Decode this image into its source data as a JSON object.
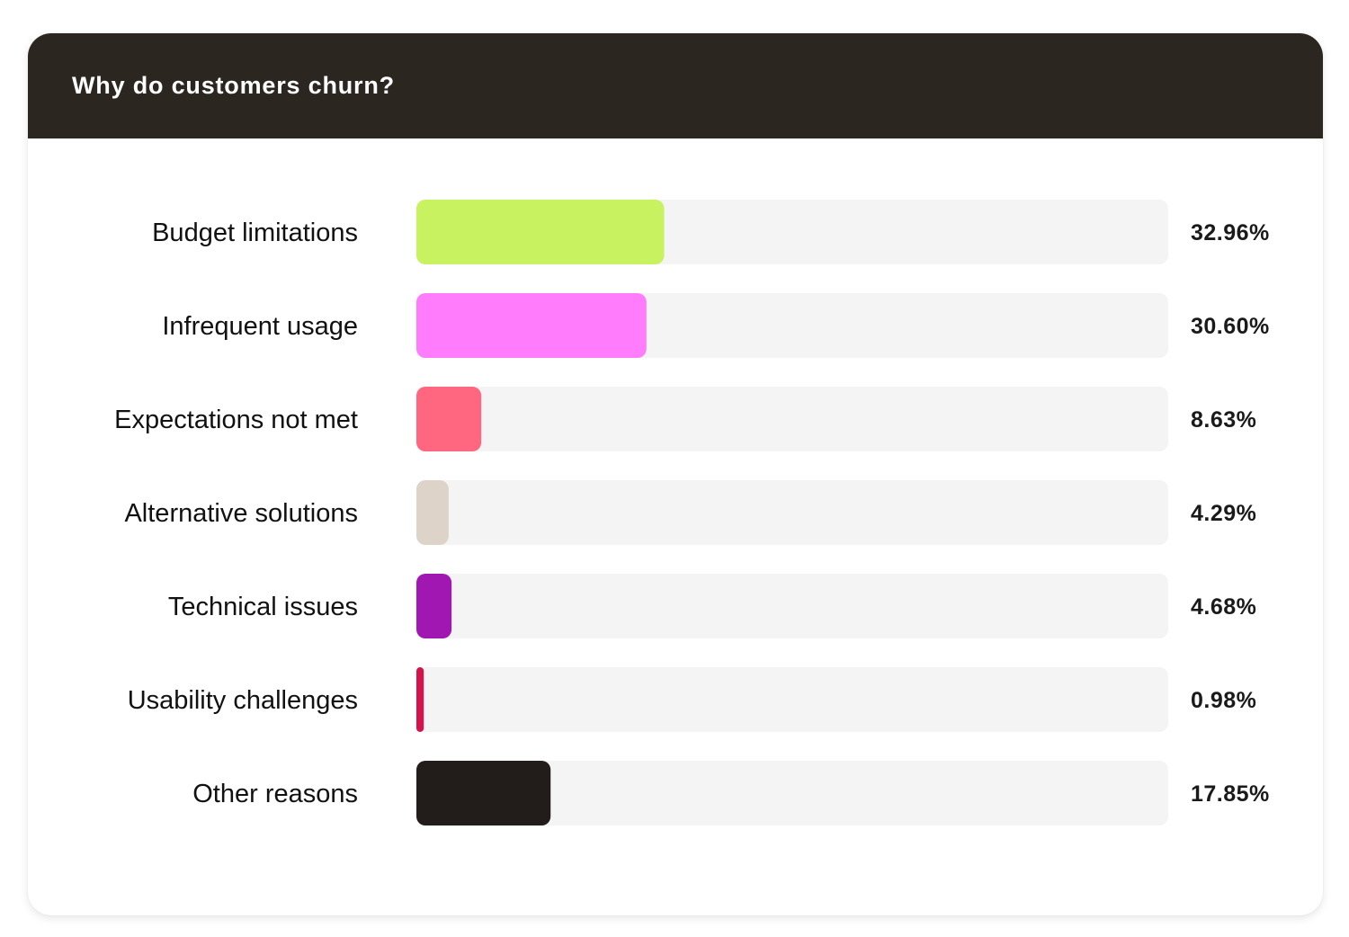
{
  "card": {
    "title": "Why do customers churn?"
  },
  "colors": {
    "header_bg": "#2c2621",
    "track": "#f4f4f4"
  },
  "chart_data": {
    "type": "bar",
    "orientation": "horizontal",
    "title": "Why do customers churn?",
    "xlim": [
      0,
      100
    ],
    "grid": false,
    "legend": "none",
    "categories": [
      "Budget limitations",
      "Infrequent usage",
      "Expectations not met",
      "Alternative solutions",
      "Technical issues",
      "Usability challenges",
      "Other reasons"
    ],
    "values": [
      32.96,
      30.6,
      8.63,
      4.29,
      4.68,
      0.98,
      17.85
    ],
    "value_labels": [
      "32.96%",
      "30.60%",
      "8.63%",
      "4.29%",
      "4.68%",
      "0.98%",
      "17.85%"
    ],
    "bar_colors": [
      "#c8f25f",
      "#ff7dfd",
      "#ff667f",
      "#ddd3c8",
      "#a117b1",
      "#d4124b",
      "#221d1a"
    ]
  }
}
